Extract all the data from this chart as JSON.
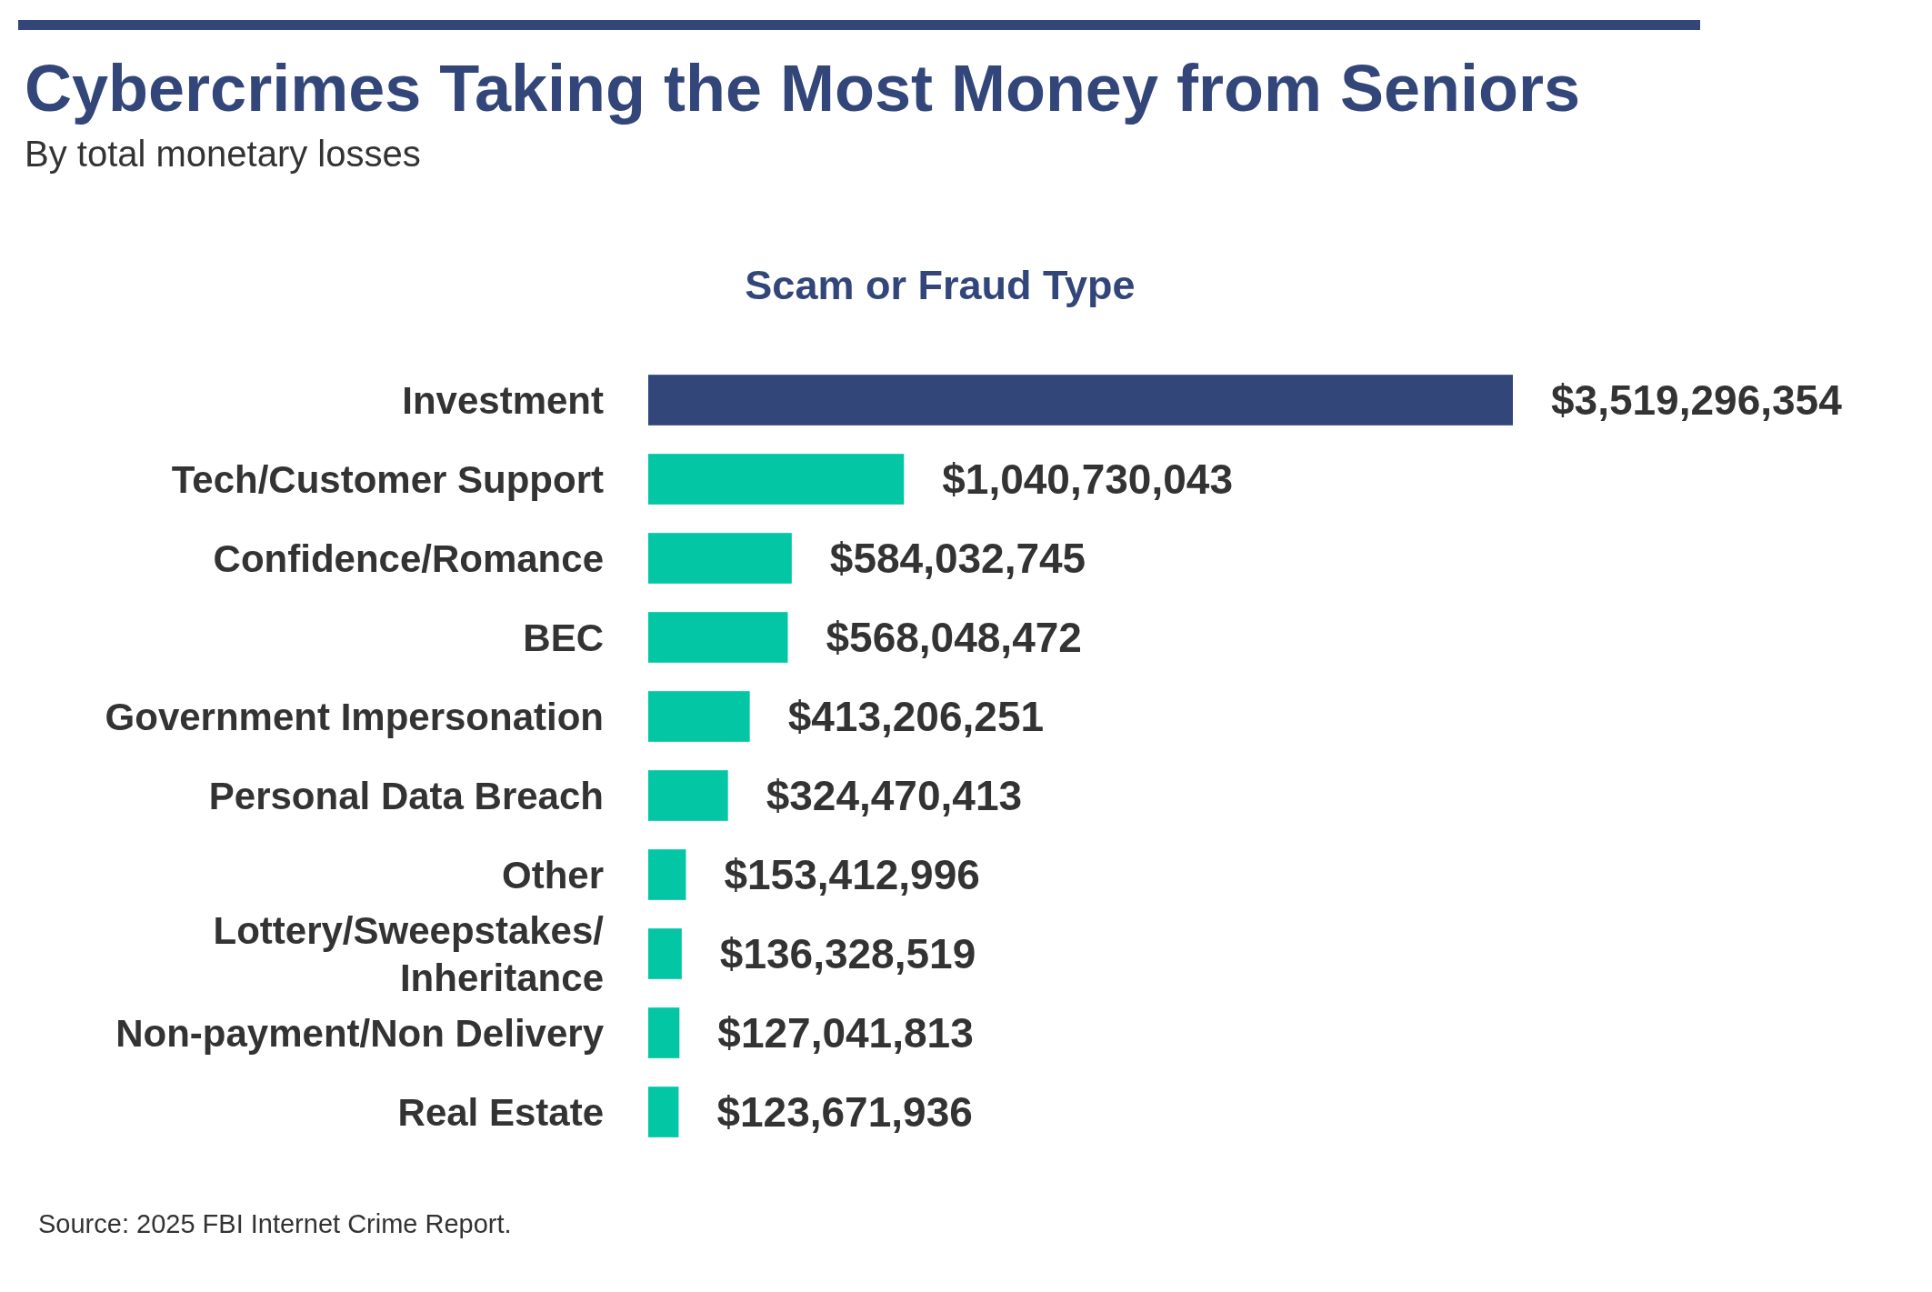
{
  "chart_data": {
    "type": "bar",
    "orientation": "horizontal",
    "title": "Cybercrimes Taking the Most Money from Seniors",
    "subtitle": "By total monetary losses",
    "ylabel": "Scam or Fraud Type",
    "categories": [
      "Investment",
      "Tech/Customer Support",
      "Confidence/Romance",
      "BEC",
      "Government Impersonation",
      "Personal Data Breach",
      "Other",
      "Lottery/Sweepstakes/Inheritance",
      "Non-payment/Non Delivery",
      "Real Estate"
    ],
    "values": [
      3519296354,
      1040730043,
      584032745,
      568048472,
      413206251,
      324470413,
      153412996,
      136328519,
      127041813,
      123671936
    ],
    "colors": [
      "#33467a",
      "#03c6a5",
      "#03c6a5",
      "#03c6a5",
      "#03c6a5",
      "#03c6a5",
      "#03c6a5",
      "#03c6a5",
      "#03c6a5",
      "#03c6a5"
    ],
    "value_labels": [
      "$3,519,296,354",
      "$1,040,730,043",
      "$584,032,745",
      "$568,048,472",
      "$413,206,251",
      "$324,470,413",
      "$153,412,996",
      "$136,328,519",
      "$127,041,813",
      "$123,671,936"
    ],
    "annotations": [
      "Source: 2025 FBI Internet Crime Report."
    ]
  }
}
